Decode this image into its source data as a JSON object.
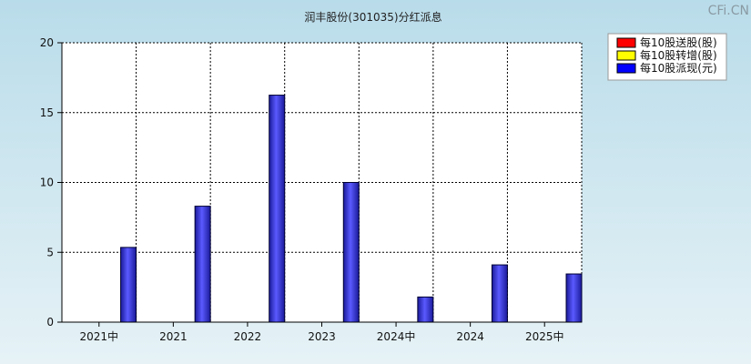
{
  "chart_data": {
    "type": "bar",
    "title": "润丰股份(301035)分红派息",
    "categories": [
      "2021中",
      "2021",
      "2022",
      "2023",
      "2024中",
      "2024",
      "2025中"
    ],
    "series": [
      {
        "name": "每10股送股(股)",
        "color": "#ff0000",
        "values": [
          0,
          0,
          0,
          0,
          0,
          0,
          0
        ]
      },
      {
        "name": "每10股转增(股)",
        "color": "#ffff00",
        "values": [
          0,
          0,
          0,
          0,
          0,
          0,
          0
        ]
      },
      {
        "name": "每10股派现(元)",
        "color": "#0000ff",
        "values": [
          5.35,
          8.3,
          16.25,
          10,
          1.8,
          4.1,
          3.45
        ]
      }
    ],
    "ylim": [
      0,
      20
    ],
    "yticks": [
      "0",
      "5",
      "10",
      "15",
      "20"
    ],
    "grid": true,
    "legend_position": "top-right"
  },
  "watermark": "CFi.CN"
}
